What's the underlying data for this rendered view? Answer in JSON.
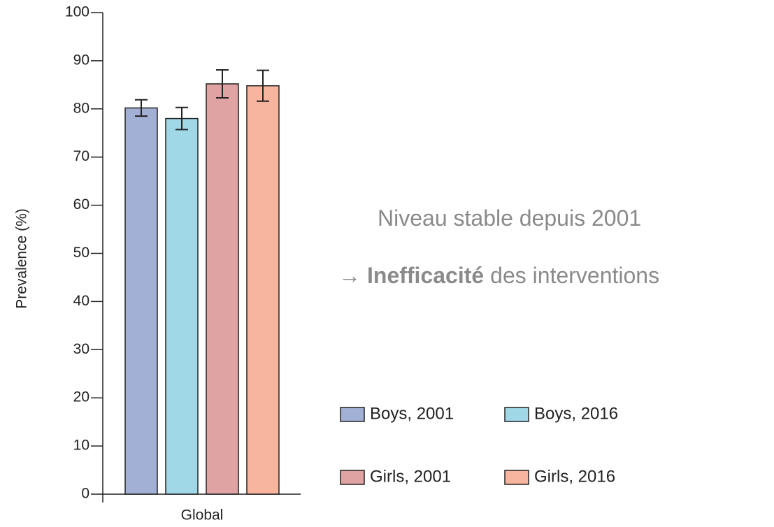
{
  "chart_data": {
    "type": "bar",
    "y_label": "Prevalence (%)",
    "categories": [
      "Global"
    ],
    "series": [
      {
        "name": "Boys, 2001",
        "color": "#a3b0d6",
        "values": [
          80.2
        ],
        "errors": [
          1.7
        ]
      },
      {
        "name": "Boys, 2016",
        "color": "#a0d8e8",
        "values": [
          78
        ],
        "errors": [
          2.3
        ]
      },
      {
        "name": "Girls, 2001",
        "color": "#e0a3a3",
        "values": [
          85.2
        ],
        "errors": [
          2.9
        ]
      },
      {
        "name": "Girls, 2016",
        "color": "#f7b59d",
        "values": [
          84.8
        ],
        "errors": [
          3.2
        ]
      }
    ],
    "ylim": [
      0,
      100
    ],
    "yticks": [
      0,
      10,
      20,
      30,
      40,
      50,
      60,
      70,
      80,
      90,
      100
    ],
    "annotations": [
      {
        "parts": [
          "Niveau stable depuis 2001"
        ]
      },
      {
        "parts": [
          "→",
          "Inefficacité",
          "des interventions"
        ]
      }
    ]
  }
}
